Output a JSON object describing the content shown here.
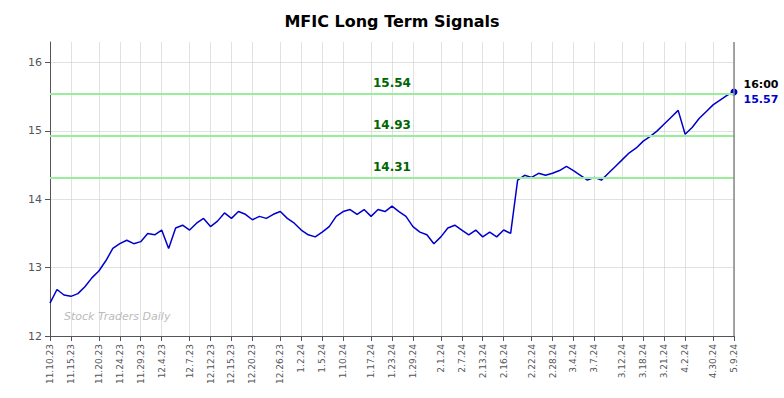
{
  "chart_data": {
    "type": "line",
    "title": "MFIC Long Term Signals",
    "categories": [
      "11.10.23",
      null,
      null,
      "11.15.23",
      null,
      null,
      null,
      "11.20.23",
      null,
      null,
      "11.24.23",
      null,
      null,
      "11.29.23",
      null,
      null,
      "12.4.23",
      null,
      null,
      null,
      "12.7.23",
      null,
      null,
      "12.12.23",
      null,
      null,
      "12.15.23",
      null,
      null,
      "12.20.23",
      null,
      null,
      null,
      "12.26.23",
      null,
      null,
      "1.2.24",
      null,
      null,
      "1.5.24",
      null,
      null,
      "1.10.24",
      null,
      null,
      null,
      "1.17.24",
      null,
      null,
      "1.23.24",
      null,
      null,
      "1.29.24",
      null,
      null,
      null,
      "2.1.24",
      null,
      null,
      "2.7.24",
      null,
      null,
      "2.13.24",
      null,
      null,
      "2.16.24",
      null,
      null,
      null,
      "2.22.24",
      null,
      null,
      "2.28.24",
      null,
      null,
      "3.4.24",
      null,
      null,
      "3.7.24",
      null,
      null,
      null,
      "3.12.24",
      null,
      null,
      "3.18.24",
      null,
      null,
      "3.21.24",
      null,
      null,
      "4.2.24",
      null,
      null,
      null,
      "4.30.24",
      null,
      null,
      "5.9.24"
    ],
    "values": [
      12.48,
      12.68,
      12.6,
      12.58,
      12.62,
      12.72,
      12.85,
      12.95,
      13.1,
      13.28,
      13.35,
      13.4,
      13.35,
      13.38,
      13.5,
      13.48,
      13.55,
      13.28,
      13.58,
      13.62,
      13.55,
      13.65,
      13.72,
      13.6,
      13.68,
      13.8,
      13.72,
      13.82,
      13.78,
      13.7,
      13.75,
      13.72,
      13.78,
      13.82,
      13.72,
      13.65,
      13.55,
      13.48,
      13.45,
      13.52,
      13.6,
      13.75,
      13.82,
      13.85,
      13.78,
      13.85,
      13.75,
      13.85,
      13.82,
      13.9,
      13.82,
      13.75,
      13.6,
      13.52,
      13.48,
      13.35,
      13.45,
      13.58,
      13.62,
      13.55,
      13.48,
      13.55,
      13.45,
      13.52,
      13.45,
      13.55,
      13.5,
      14.28,
      14.35,
      14.32,
      14.38,
      14.35,
      14.38,
      14.42,
      14.48,
      14.42,
      14.35,
      14.28,
      14.32,
      14.28,
      14.38,
      14.48,
      14.58,
      14.68,
      14.75,
      14.85,
      14.92,
      15.0,
      15.1,
      15.2,
      15.3,
      14.95,
      15.05,
      15.18,
      15.28,
      15.38,
      15.45,
      15.52,
      15.57
    ],
    "color": "#0000cc",
    "ylim": [
      12,
      16.3
    ],
    "yticks": [
      12,
      13,
      14,
      15,
      16
    ],
    "grid": true,
    "hlines": {
      "values": [
        15.54,
        14.93,
        14.31
      ],
      "color": "#99ee99",
      "label_color": "#006600"
    },
    "last_point": {
      "time": "16:00",
      "price": "15.57"
    },
    "watermark": "Stock Traders Daily"
  }
}
